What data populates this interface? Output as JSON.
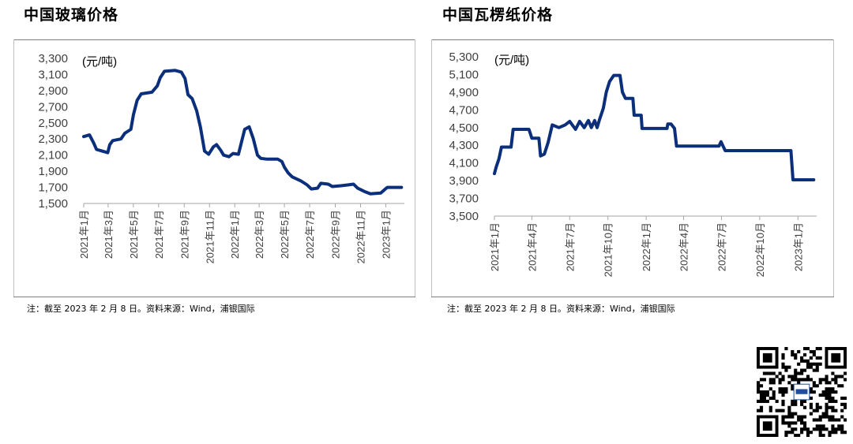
{
  "charts": [
    {
      "panel_title": "中国玻璃价格",
      "footnote": "注：截至 2023 年 2 月 8 日。资料来源：Wind，浦银国际",
      "chart_data": {
        "type": "line",
        "title": "中国玻璃价格",
        "unit_label": "(元/吨)",
        "color": "#0b2f7a",
        "ylim": [
          1500,
          3300
        ],
        "yticks": [
          1500,
          1700,
          1900,
          2100,
          2300,
          2500,
          2700,
          2900,
          3100,
          3300
        ],
        "ytick_labels": [
          "1,500",
          "1,700",
          "1,900",
          "2,100",
          "2,300",
          "2,500",
          "2,700",
          "2,900",
          "3,100",
          "3,300"
        ],
        "xlim": [
          "2021-01-01",
          "2023-02-15"
        ],
        "xticks": [
          "2021-01-01",
          "2021-03-01",
          "2021-05-01",
          "2021-07-01",
          "2021-09-01",
          "2021-11-01",
          "2022-01-01",
          "2022-03-01",
          "2022-05-01",
          "2022-07-01",
          "2022-09-01",
          "2022-11-01",
          "2023-01-01"
        ],
        "xtick_labels": [
          "2021年1月",
          "2021年3月",
          "2021年5月",
          "2021年7月",
          "2021年9月",
          "2021年11月",
          "2022年1月",
          "2022年3月",
          "2022年5月",
          "2022年7月",
          "2022年9月",
          "2022年11月",
          "2023年1月"
        ],
        "grid": false,
        "legend": "none",
        "points": [
          [
            "2021-01-01",
            2330
          ],
          [
            "2021-01-15",
            2350
          ],
          [
            "2021-01-25",
            2250
          ],
          [
            "2021-02-01",
            2170
          ],
          [
            "2021-02-28",
            2130
          ],
          [
            "2021-03-05",
            2230
          ],
          [
            "2021-03-12",
            2280
          ],
          [
            "2021-04-01",
            2300
          ],
          [
            "2021-04-10",
            2370
          ],
          [
            "2021-04-25",
            2420
          ],
          [
            "2021-05-01",
            2600
          ],
          [
            "2021-05-10",
            2780
          ],
          [
            "2021-05-20",
            2860
          ],
          [
            "2021-06-15",
            2880
          ],
          [
            "2021-06-28",
            2960
          ],
          [
            "2021-07-05",
            3060
          ],
          [
            "2021-07-15",
            3140
          ],
          [
            "2021-08-10",
            3150
          ],
          [
            "2021-08-25",
            3130
          ],
          [
            "2021-09-03",
            3050
          ],
          [
            "2021-09-10",
            2850
          ],
          [
            "2021-09-20",
            2800
          ],
          [
            "2021-10-01",
            2650
          ],
          [
            "2021-10-10",
            2450
          ],
          [
            "2021-10-20",
            2150
          ],
          [
            "2021-10-30",
            2110
          ],
          [
            "2021-11-10",
            2200
          ],
          [
            "2021-11-18",
            2230
          ],
          [
            "2021-11-28",
            2160
          ],
          [
            "2021-12-05",
            2100
          ],
          [
            "2021-12-18",
            2080
          ],
          [
            "2021-12-28",
            2120
          ],
          [
            "2022-01-10",
            2110
          ],
          [
            "2022-01-25",
            2420
          ],
          [
            "2022-02-05",
            2450
          ],
          [
            "2022-02-15",
            2300
          ],
          [
            "2022-02-25",
            2100
          ],
          [
            "2022-03-05",
            2060
          ],
          [
            "2022-03-20",
            2050
          ],
          [
            "2022-04-15",
            2050
          ],
          [
            "2022-04-25",
            2020
          ],
          [
            "2022-05-01",
            1950
          ],
          [
            "2022-05-10",
            1880
          ],
          [
            "2022-05-20",
            1830
          ],
          [
            "2022-06-10",
            1780
          ],
          [
            "2022-06-25",
            1730
          ],
          [
            "2022-07-05",
            1680
          ],
          [
            "2022-07-20",
            1690
          ],
          [
            "2022-07-28",
            1750
          ],
          [
            "2022-08-15",
            1740
          ],
          [
            "2022-08-25",
            1710
          ],
          [
            "2022-09-15",
            1720
          ],
          [
            "2022-10-01",
            1730
          ],
          [
            "2022-10-15",
            1740
          ],
          [
            "2022-10-25",
            1690
          ],
          [
            "2022-11-10",
            1650
          ],
          [
            "2022-11-25",
            1620
          ],
          [
            "2022-12-20",
            1630
          ],
          [
            "2022-12-31",
            1680
          ],
          [
            "2023-01-05",
            1700
          ],
          [
            "2023-02-08",
            1700
          ]
        ]
      }
    },
    {
      "panel_title": "中国瓦楞纸价格",
      "footnote": "注：截至 2023 年 2 月 8 日。资料来源：Wind，浦银国际",
      "chart_data": {
        "type": "line",
        "title": "中国瓦楞纸价格",
        "unit_label": "(元/吨)",
        "color": "#0b2f7a",
        "ylim": [
          3500,
          5300
        ],
        "yticks": [
          3500,
          3700,
          3900,
          4100,
          4300,
          4500,
          4700,
          4900,
          5100,
          5300
        ],
        "ytick_labels": [
          "3,500",
          "3,700",
          "3,900",
          "4,100",
          "4,300",
          "4,500",
          "4,700",
          "4,900",
          "5,100",
          "5,300"
        ],
        "xlim": [
          "2021-01-01",
          "2023-02-15"
        ],
        "xticks": [
          "2021-01-01",
          "2021-04-01",
          "2021-07-01",
          "2021-10-01",
          "2022-01-01",
          "2022-04-01",
          "2022-07-01",
          "2022-10-01",
          "2023-01-01"
        ],
        "xtick_labels": [
          "2021年1月",
          "2021年4月",
          "2021年7月",
          "2021年10月",
          "2022年1月",
          "2022年4月",
          "2022年7月",
          "2022年10月",
          "2023年1月"
        ],
        "grid": false,
        "legend": "none",
        "points": [
          [
            "2021-01-01",
            3980
          ],
          [
            "2021-01-05",
            4050
          ],
          [
            "2021-01-12",
            4150
          ],
          [
            "2021-01-18",
            4280
          ],
          [
            "2021-02-10",
            4280
          ],
          [
            "2021-02-15",
            4480
          ],
          [
            "2021-03-25",
            4480
          ],
          [
            "2021-04-01",
            4380
          ],
          [
            "2021-04-18",
            4380
          ],
          [
            "2021-04-22",
            4180
          ],
          [
            "2021-05-01",
            4200
          ],
          [
            "2021-05-10",
            4330
          ],
          [
            "2021-05-20",
            4530
          ],
          [
            "2021-06-05",
            4500
          ],
          [
            "2021-06-20",
            4530
          ],
          [
            "2021-07-01",
            4570
          ],
          [
            "2021-07-15",
            4480
          ],
          [
            "2021-07-25",
            4570
          ],
          [
            "2021-08-05",
            4500
          ],
          [
            "2021-08-15",
            4580
          ],
          [
            "2021-08-22",
            4500
          ],
          [
            "2021-08-30",
            4580
          ],
          [
            "2021-09-05",
            4500
          ],
          [
            "2021-09-10",
            4580
          ],
          [
            "2021-09-20",
            4720
          ],
          [
            "2021-09-27",
            4900
          ],
          [
            "2021-10-05",
            5020
          ],
          [
            "2021-10-15",
            5090
          ],
          [
            "2021-10-30",
            5090
          ],
          [
            "2021-11-05",
            4900
          ],
          [
            "2021-11-12",
            4830
          ],
          [
            "2021-11-30",
            4830
          ],
          [
            "2021-12-03",
            4640
          ],
          [
            "2021-12-20",
            4640
          ],
          [
            "2021-12-22",
            4490
          ],
          [
            "2022-02-20",
            4490
          ],
          [
            "2022-02-22",
            4540
          ],
          [
            "2022-03-02",
            4540
          ],
          [
            "2022-03-10",
            4490
          ],
          [
            "2022-03-15",
            4290
          ],
          [
            "2022-06-25",
            4290
          ],
          [
            "2022-06-30",
            4340
          ],
          [
            "2022-07-05",
            4290
          ],
          [
            "2022-07-10",
            4240
          ],
          [
            "2022-12-15",
            4240
          ],
          [
            "2022-12-20",
            3910
          ],
          [
            "2023-02-08",
            3910
          ]
        ]
      }
    }
  ]
}
